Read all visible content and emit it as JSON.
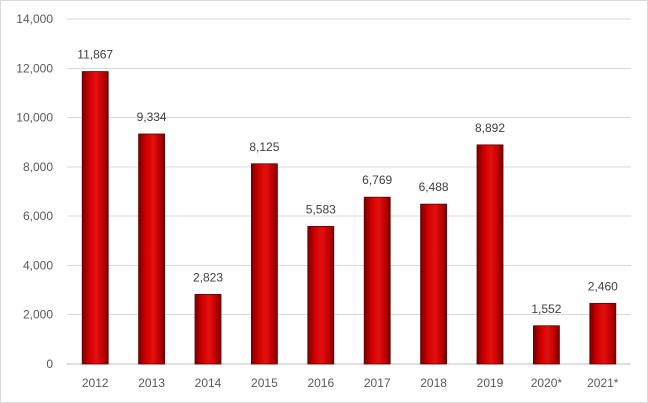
{
  "chart_data": {
    "type": "bar",
    "title": "",
    "xlabel": "",
    "ylabel": "",
    "categories": [
      "2012",
      "2013",
      "2014",
      "2015",
      "2016",
      "2017",
      "2018",
      "2019",
      "2020*",
      "2021*"
    ],
    "values": [
      11867,
      9334,
      2823,
      8125,
      5583,
      6769,
      6488,
      8892,
      1552,
      2460
    ],
    "data_labels": [
      "11,867",
      "9,334",
      "2,823",
      "8,125",
      "5,583",
      "6,769",
      "6,488",
      "8,892",
      "1,552",
      "2,460"
    ],
    "ylim": [
      0,
      14000
    ],
    "yticks": [
      0,
      2000,
      4000,
      6000,
      8000,
      10000,
      12000,
      14000
    ],
    "ytick_labels": [
      "0",
      "2,000",
      "4,000",
      "6,000",
      "8,000",
      "10,000",
      "12,000",
      "14,000"
    ],
    "grid": true,
    "legend": "none",
    "bar_color": "#cc0000"
  }
}
